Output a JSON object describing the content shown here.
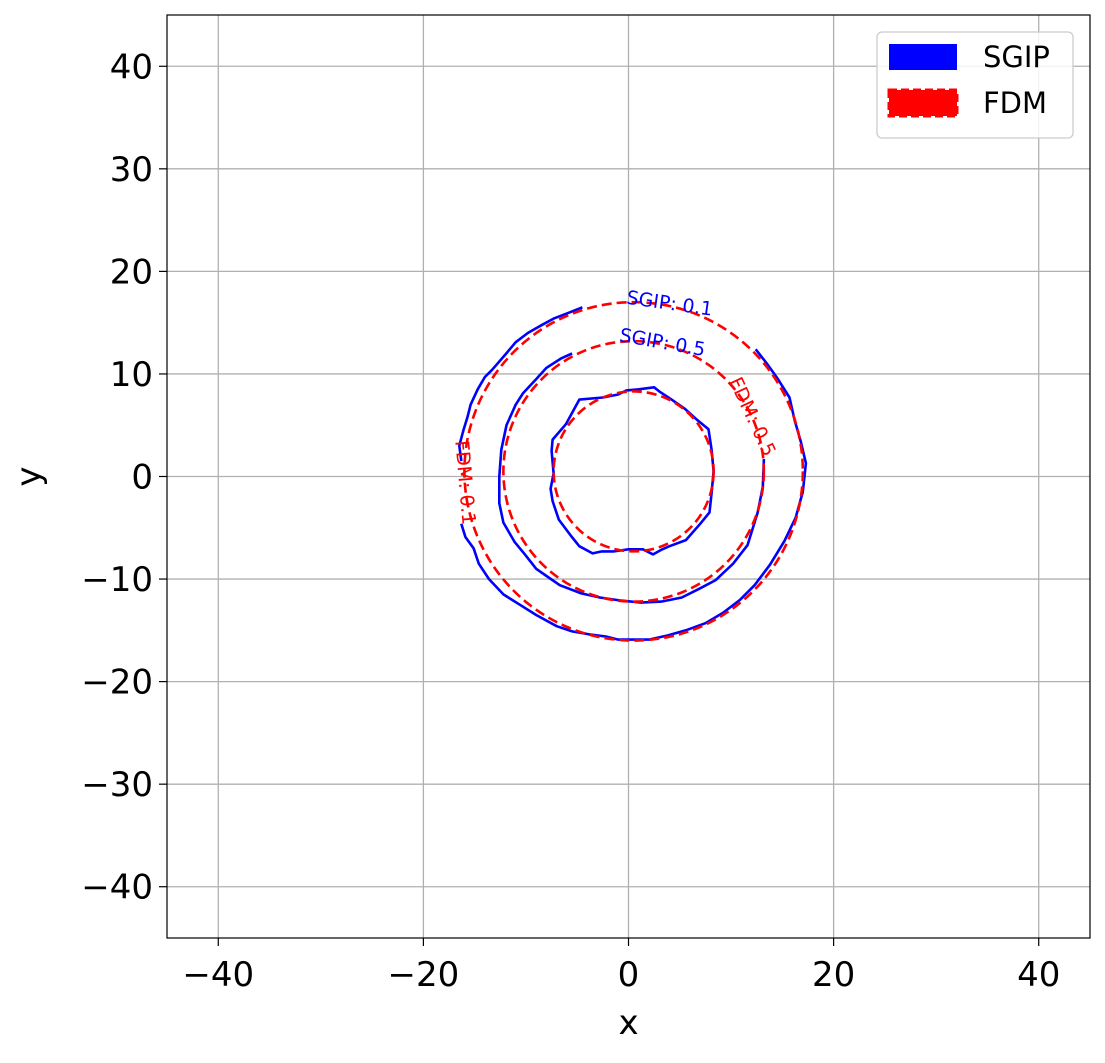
{
  "chart_data": {
    "type": "line",
    "title": "",
    "xlabel": "x",
    "ylabel": "y",
    "xlim": [
      -45,
      45
    ],
    "ylim": [
      -45,
      45
    ],
    "xticks": [
      -40,
      -20,
      0,
      20,
      40
    ],
    "xtick_labels": [
      "−40",
      "−20",
      "0",
      "20",
      "40"
    ],
    "yticks": [
      -40,
      -30,
      -20,
      -10,
      0,
      10,
      20,
      30,
      40
    ],
    "ytick_labels": [
      "−40",
      "−30",
      "−20",
      "−10",
      "0",
      "10",
      "20",
      "30",
      "40"
    ],
    "grid": true,
    "legend": {
      "position": "top-right",
      "entries": [
        {
          "label": "SGIP",
          "color": "#0000ff",
          "style": "solid"
        },
        {
          "label": "FDM",
          "color": "#ff0000",
          "style": "dashed"
        }
      ]
    },
    "colors": {
      "SGIP": "#0000ff",
      "FDM": "#ff0000",
      "grid": "#b0b0b0"
    },
    "series": [
      {
        "name": "SGIP",
        "color": "#0000ff",
        "style": "solid",
        "closed": true,
        "points": [
          [
            -4.8,
            7.5
          ],
          [
            -2.5,
            7.7
          ],
          [
            -1.0,
            8.0
          ],
          [
            -0.2,
            8.4
          ],
          [
            1.0,
            8.5
          ],
          [
            2.5,
            8.7
          ],
          [
            3.0,
            8.3
          ],
          [
            4.2,
            7.5
          ],
          [
            5.5,
            6.6
          ],
          [
            6.6,
            5.6
          ],
          [
            7.8,
            4.6
          ],
          [
            8.1,
            2.6
          ],
          [
            8.3,
            0.5
          ],
          [
            8.1,
            -1.6
          ],
          [
            7.9,
            -3.5
          ],
          [
            7.0,
            -4.6
          ],
          [
            5.6,
            -6.2
          ],
          [
            4.0,
            -6.8
          ],
          [
            3.3,
            -7.1
          ],
          [
            2.4,
            -7.6
          ],
          [
            1.4,
            -7.1
          ],
          [
            0.0,
            -7.1
          ],
          [
            -1.4,
            -7.3
          ],
          [
            -2.6,
            -7.3
          ],
          [
            -3.5,
            -7.5
          ],
          [
            -4.8,
            -6.8
          ],
          [
            -5.6,
            -5.8
          ],
          [
            -6.8,
            -4.2
          ],
          [
            -7.4,
            -2.4
          ],
          [
            -7.6,
            -1.2
          ],
          [
            -7.3,
            0.3
          ],
          [
            -7.5,
            2.5
          ],
          [
            -7.4,
            3.6
          ],
          [
            -6.1,
            5.1
          ]
        ]
      },
      {
        "name": "SGIP",
        "color": "#0000ff",
        "style": "solid",
        "closed": false,
        "points": [
          [
            -5.5,
            12.0
          ],
          [
            -6.6,
            11.5
          ],
          [
            -8.0,
            10.6
          ],
          [
            -9.0,
            9.5
          ],
          [
            -10.3,
            8.1
          ],
          [
            -11.0,
            7.0
          ],
          [
            -11.9,
            5.0
          ],
          [
            -12.4,
            2.6
          ],
          [
            -12.6,
            0.0
          ],
          [
            -12.6,
            -2.6
          ],
          [
            -12.2,
            -4.5
          ],
          [
            -11.1,
            -6.4
          ],
          [
            -10.1,
            -7.6
          ],
          [
            -9.0,
            -9.0
          ],
          [
            -8.0,
            -9.7
          ],
          [
            -6.7,
            -10.6
          ],
          [
            -4.6,
            -11.4
          ],
          [
            -2.8,
            -11.8
          ],
          [
            -0.7,
            -12.1
          ],
          [
            1.2,
            -12.3
          ],
          [
            3.2,
            -12.2
          ],
          [
            5.2,
            -11.8
          ],
          [
            6.8,
            -11.0
          ],
          [
            8.5,
            -10.1
          ],
          [
            10.2,
            -8.5
          ],
          [
            11.6,
            -6.7
          ],
          [
            12.6,
            -3.5
          ],
          [
            13.1,
            -1.0
          ],
          [
            13.2,
            1.7
          ]
        ]
      },
      {
        "name": "SGIP",
        "color": "#0000ff",
        "style": "solid",
        "closed": false,
        "points": [
          [
            -4.5,
            16.5
          ],
          [
            -6.0,
            15.9
          ],
          [
            -7.3,
            15.4
          ],
          [
            -8.4,
            14.8
          ],
          [
            -9.8,
            14.0
          ],
          [
            -11.0,
            13.1
          ],
          [
            -12.0,
            11.9
          ],
          [
            -13.3,
            10.4
          ],
          [
            -14.0,
            9.7
          ],
          [
            -14.7,
            8.5
          ],
          [
            -15.4,
            7.0
          ],
          [
            -15.7,
            5.8
          ],
          [
            -16.1,
            4.5
          ],
          [
            -16.5,
            3.0
          ],
          [
            -16.3,
            1.5
          ]
        ]
      },
      {
        "name": "SGIP",
        "color": "#0000ff",
        "style": "solid",
        "closed": false,
        "points": [
          [
            -16.3,
            -4.6
          ],
          [
            -15.9,
            -5.9
          ],
          [
            -15.1,
            -7.0
          ],
          [
            -14.6,
            -8.5
          ],
          [
            -13.6,
            -10.0
          ],
          [
            -12.2,
            -11.5
          ],
          [
            -10.6,
            -12.5
          ],
          [
            -9.0,
            -13.5
          ],
          [
            -7.0,
            -14.6
          ],
          [
            -5.5,
            -15.1
          ],
          [
            -3.8,
            -15.4
          ],
          [
            -2.2,
            -15.6
          ],
          [
            -1.0,
            -15.9
          ],
          [
            0.0,
            -15.9
          ],
          [
            2.0,
            -15.9
          ],
          [
            3.8,
            -15.5
          ],
          [
            5.6,
            -15.0
          ],
          [
            7.5,
            -14.3
          ],
          [
            9.2,
            -13.3
          ],
          [
            10.9,
            -12.0
          ],
          [
            12.3,
            -10.6
          ],
          [
            13.8,
            -8.6
          ],
          [
            15.2,
            -6.3
          ],
          [
            16.3,
            -4.0
          ],
          [
            17.0,
            -1.5
          ],
          [
            17.3,
            1.3
          ],
          [
            16.8,
            3.4
          ],
          [
            16.2,
            5.5
          ],
          [
            15.7,
            7.7
          ],
          [
            14.5,
            9.6
          ],
          [
            13.5,
            11.0
          ],
          [
            12.4,
            12.4
          ]
        ]
      },
      {
        "name": "FDM",
        "color": "#ff0000",
        "style": "dashed",
        "closed": true,
        "circle": {
          "cx": 0.5,
          "cy": 0.5,
          "r": 7.8
        }
      },
      {
        "name": "FDM",
        "color": "#ff0000",
        "style": "dashed",
        "closed": true,
        "circle": {
          "cx": 0.5,
          "cy": 0.5,
          "r": 12.7
        }
      },
      {
        "name": "FDM",
        "color": "#ff0000",
        "style": "dashed",
        "closed": true,
        "circle": {
          "cx": 0.5,
          "cy": 0.5,
          "r": 16.5
        }
      }
    ],
    "annotations": [
      {
        "text": "SGIP: 0.1",
        "x": 4.0,
        "y": 16.8,
        "angle": 8,
        "color": "#0000ff"
      },
      {
        "text": "SGIP: 0.5",
        "x": 3.3,
        "y": 13.0,
        "angle": 10,
        "color": "#0000ff"
      },
      {
        "text": "FDM: 0.5",
        "x": 12.0,
        "y": 5.8,
        "angle": 65,
        "color": "#ff0000"
      },
      {
        "text": "FDM: 0.1",
        "x": -16.0,
        "y": -0.6,
        "angle": 85,
        "color": "#ff0000"
      }
    ]
  }
}
